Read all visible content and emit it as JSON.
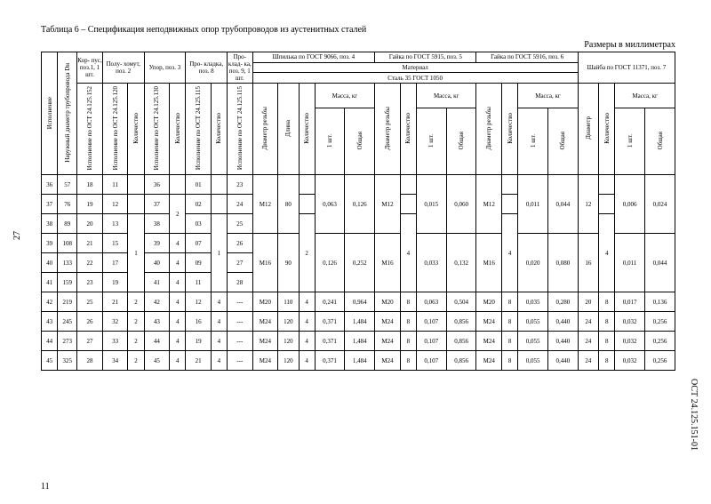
{
  "title": "Таблица 6 – Спецификация неподвижных опор трубопроводов из аустенитных сталей",
  "units": "Размеры в миллиметрах",
  "side_left": "27",
  "side_right": "ОСТ 24.125.151-01",
  "foot": "11",
  "head": {
    "c1": "Исполнение",
    "c2": "Наружный диаметр трубопровода Dн",
    "g_korpus": "Кор-\nпус, поз.1,\n1 шт.",
    "g_polu": "Полу-\nхомут,\nпоз. 2",
    "g_upor": "Упор,\nпоз. 3",
    "g_prokl": "Про-\nкладка,\nпоз. 8",
    "g_prokl9": "Про-\nклад-\nка,\nпоз. 9,\n1 шт.",
    "g_shp": "Шпилька по ГОСТ 9066,\nпоз. 4",
    "g_g5915": "Гайка по ГОСТ 5915,\nпоз. 5",
    "g_g5916": "Гайка по ГОСТ 5916,\nпоз. 6",
    "g_shaiba": "Шайба по ГОСТ 11371,\nпоз. 7",
    "material": "Материал",
    "steel": "Сталь 35  ГОСТ 1050",
    "ost152": "Исполнение по ОСТ 24.125.152",
    "ost120": "Исполнение по ОСТ 24.125.120",
    "ost130": "Исполнение по ОСТ 24.125.130",
    "ost115": "Исполнение по ОСТ 24.125.115",
    "kol": "Количество",
    "diam": "Диаметр резьбы",
    "dlina": "Длина",
    "massa": "Масса,\nкг",
    "m1": "1 шт.",
    "mob": "Общая",
    "diash": "Диаметр"
  },
  "rows": [
    {
      "r": [
        "36",
        "57",
        "18",
        "11",
        "",
        "36",
        "",
        "01",
        "",
        "23",
        "M12",
        "80",
        "",
        "0,063",
        "0,126",
        "M12",
        "",
        "0,015",
        "0,060",
        "M12",
        "",
        "0,011",
        "0,044",
        "12",
        "",
        "0,006",
        "0,024"
      ]
    },
    {
      "r": [
        "37",
        "76",
        "19",
        "12",
        "",
        "37",
        "2",
        "02",
        "",
        "24",
        "",
        "",
        "",
        "",
        "",
        "",
        "",
        "",
        "",
        "",
        "",
        "",
        "",
        "",
        "",
        "",
        ""
      ]
    },
    {
      "r": [
        "38",
        "89",
        "20",
        "13",
        "1",
        "38",
        "",
        "03",
        "1",
        "25",
        "",
        "",
        "2",
        "",
        "",
        "",
        "4",
        "",
        "",
        "",
        "4",
        "",
        "",
        "",
        "4",
        "",
        ""
      ]
    },
    {
      "r": [
        "39",
        "108",
        "21",
        "15",
        "",
        "39",
        "4",
        "07",
        "",
        "26",
        "M16",
        "90",
        "",
        "0,126",
        "0,252",
        "M16",
        "",
        "0,033",
        "0,132",
        "M16",
        "",
        "0,020",
        "0,080",
        "16",
        "",
        "0,011",
        "0,044"
      ]
    },
    {
      "r": [
        "40",
        "133",
        "22",
        "17",
        "",
        "40",
        "4",
        "09",
        "",
        "27",
        "",
        "",
        "",
        "",
        "",
        "",
        "",
        "",
        "",
        "",
        "",
        "",
        "",
        "",
        "",
        "",
        ""
      ]
    },
    {
      "r": [
        "41",
        "159",
        "23",
        "19",
        "",
        "41",
        "4",
        "11",
        "",
        "28",
        "",
        "",
        "",
        "",
        "",
        "",
        "",
        "",
        "",
        "",
        "",
        "",
        "",
        "",
        "",
        "",
        ""
      ]
    },
    {
      "r": [
        "42",
        "219",
        "25",
        "21",
        "2",
        "42",
        "4",
        "12",
        "4",
        "---",
        "M20",
        "110",
        "4",
        "0,241",
        "0,964",
        "M20",
        "8",
        "0,063",
        "0,504",
        "M20",
        "8",
        "0,035",
        "0,280",
        "20",
        "8",
        "0,017",
        "0,136"
      ]
    },
    {
      "r": [
        "43",
        "245",
        "26",
        "32",
        "2",
        "43",
        "4",
        "16",
        "4",
        "---",
        "M24",
        "120",
        "4",
        "0,371",
        "1,484",
        "M24",
        "8",
        "0,107",
        "0,856",
        "M24",
        "8",
        "0,055",
        "0,440",
        "24",
        "8",
        "0,032",
        "0,256"
      ]
    },
    {
      "r": [
        "44",
        "273",
        "27",
        "33",
        "2",
        "44",
        "4",
        "19",
        "4",
        "---",
        "M24",
        "120",
        "4",
        "0,371",
        "1,484",
        "M24",
        "8",
        "0,107",
        "0,856",
        "M24",
        "8",
        "0,055",
        "0,440",
        "24",
        "8",
        "0,032",
        "0,256"
      ]
    },
    {
      "r": [
        "45",
        "325",
        "28",
        "34",
        "2",
        "45",
        "4",
        "21",
        "4",
        "---",
        "M24",
        "120",
        "4",
        "0,371",
        "1,484",
        "M24",
        "8",
        "0,107",
        "0,856",
        "M24",
        "8",
        "0,055",
        "0,440",
        "24",
        "8",
        "0,032",
        "0,256"
      ]
    }
  ]
}
